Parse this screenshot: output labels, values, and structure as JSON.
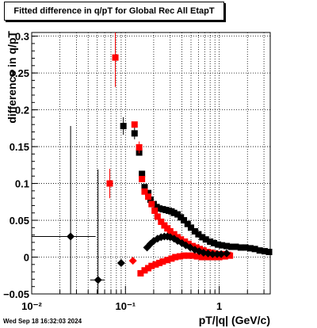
{
  "chart_data": {
    "type": "scatter",
    "title": "Fitted difference in q/pT for Global Rec All EtapT",
    "xlabel": "pT/|q| (GeV/c)",
    "ylabel": "difference in q/pT",
    "xscale": "log",
    "xlim": [
      0.01,
      3.5
    ],
    "ylim": [
      -0.05,
      0.305
    ],
    "grid": true,
    "x_tick_labels": [
      "10⁻²",
      "10⁻¹",
      "1"
    ],
    "y_tick_labels": [
      "−0.05",
      "0",
      "0.05",
      "0.1",
      "0.15",
      "0.2",
      "0.25",
      "0.3"
    ],
    "y_ticks": [
      -0.05,
      0,
      0.05,
      0.1,
      0.15,
      0.2,
      0.25,
      0.3
    ],
    "colors": {
      "black": "#000000",
      "red": "#ff0000",
      "frame": "#000000"
    },
    "series": [
      {
        "marker": "square",
        "color": "#000000",
        "points": [
          {
            "x": 0.095,
            "y": 0.178,
            "yerr": 0.012
          },
          {
            "x": 0.125,
            "y": 0.168,
            "yerr": 0.008
          },
          {
            "x": 0.14,
            "y": 0.142
          },
          {
            "x": 0.15,
            "y": 0.113
          },
          {
            "x": 0.16,
            "y": 0.095
          },
          {
            "x": 0.175,
            "y": 0.087
          },
          {
            "x": 0.185,
            "y": 0.078
          },
          {
            "x": 0.2,
            "y": 0.072
          },
          {
            "x": 0.215,
            "y": 0.068
          },
          {
            "x": 0.23,
            "y": 0.066
          },
          {
            "x": 0.25,
            "y": 0.065
          },
          {
            "x": 0.27,
            "y": 0.064
          },
          {
            "x": 0.29,
            "y": 0.063
          },
          {
            "x": 0.31,
            "y": 0.062
          },
          {
            "x": 0.33,
            "y": 0.06
          },
          {
            "x": 0.36,
            "y": 0.058
          },
          {
            "x": 0.39,
            "y": 0.054
          },
          {
            "x": 0.42,
            "y": 0.05
          },
          {
            "x": 0.46,
            "y": 0.045
          },
          {
            "x": 0.5,
            "y": 0.04
          },
          {
            "x": 0.55,
            "y": 0.035
          },
          {
            "x": 0.6,
            "y": 0.031
          },
          {
            "x": 0.66,
            "y": 0.027
          },
          {
            "x": 0.72,
            "y": 0.024
          },
          {
            "x": 0.8,
            "y": 0.021
          },
          {
            "x": 0.88,
            "y": 0.019
          },
          {
            "x": 0.97,
            "y": 0.017
          },
          {
            "x": 1.07,
            "y": 0.016
          },
          {
            "x": 1.2,
            "y": 0.015
          },
          {
            "x": 1.35,
            "y": 0.014
          },
          {
            "x": 1.5,
            "y": 0.014
          },
          {
            "x": 1.7,
            "y": 0.013
          },
          {
            "x": 1.9,
            "y": 0.013
          },
          {
            "x": 2.15,
            "y": 0.012
          },
          {
            "x": 2.4,
            "y": 0.011
          },
          {
            "x": 2.7,
            "y": 0.009
          },
          {
            "x": 3.05,
            "y": 0.008
          },
          {
            "x": 3.4,
            "y": 0.007
          }
        ]
      },
      {
        "marker": "square",
        "color": "#ff0000",
        "points": [
          {
            "x": 0.068,
            "y": 0.1,
            "yerr": 0.02
          },
          {
            "x": 0.078,
            "y": 0.271,
            "yerr": 0.04
          },
          {
            "x": 0.125,
            "y": 0.18
          },
          {
            "x": 0.14,
            "y": 0.149,
            "yerr": 0.008
          },
          {
            "x": 0.15,
            "y": 0.106
          },
          {
            "x": 0.16,
            "y": 0.089
          },
          {
            "x": 0.175,
            "y": 0.082
          },
          {
            "x": 0.19,
            "y": 0.072
          },
          {
            "x": 0.205,
            "y": 0.063
          },
          {
            "x": 0.22,
            "y": 0.055
          },
          {
            "x": 0.24,
            "y": 0.048
          },
          {
            "x": 0.26,
            "y": 0.043
          },
          {
            "x": 0.28,
            "y": 0.039
          },
          {
            "x": 0.3,
            "y": 0.035
          },
          {
            "x": 0.33,
            "y": 0.031
          },
          {
            "x": 0.36,
            "y": 0.027
          },
          {
            "x": 0.39,
            "y": 0.024
          },
          {
            "x": 0.43,
            "y": 0.021
          },
          {
            "x": 0.47,
            "y": 0.018
          },
          {
            "x": 0.52,
            "y": 0.015
          },
          {
            "x": 0.57,
            "y": 0.013
          },
          {
            "x": 0.62,
            "y": 0.011
          },
          {
            "x": 0.68,
            "y": 0.009
          },
          {
            "x": 0.75,
            "y": 0.007
          },
          {
            "x": 0.82,
            "y": 0.006
          },
          {
            "x": 0.9,
            "y": 0.005
          },
          {
            "x": 1.0,
            "y": 0.004
          },
          {
            "x": 1.1,
            "y": 0.004
          },
          {
            "x": 1.25,
            "y": 0.003
          },
          {
            "x": 0.145,
            "y": -0.022
          },
          {
            "x": 0.16,
            "y": -0.018
          },
          {
            "x": 0.175,
            "y": -0.015
          },
          {
            "x": 0.19,
            "y": -0.012
          },
          {
            "x": 0.21,
            "y": -0.01
          },
          {
            "x": 0.23,
            "y": -0.008
          },
          {
            "x": 0.25,
            "y": -0.006
          },
          {
            "x": 0.28,
            "y": -0.004
          },
          {
            "x": 0.31,
            "y": -0.002
          },
          {
            "x": 0.34,
            "y": 0.0
          },
          {
            "x": 0.38,
            "y": 0.001
          },
          {
            "x": 0.42,
            "y": 0.002
          },
          {
            "x": 0.47,
            "y": 0.002
          },
          {
            "x": 0.52,
            "y": 0.002
          },
          {
            "x": 0.58,
            "y": 0.001
          },
          {
            "x": 0.65,
            "y": 0.0
          },
          {
            "x": 0.72,
            "y": 0.0
          },
          {
            "x": 0.8,
            "y": 0.0
          },
          {
            "x": 0.9,
            "y": 0.0
          },
          {
            "x": 1.0,
            "y": 0.0
          },
          {
            "x": 1.15,
            "y": 0.001
          },
          {
            "x": 1.3,
            "y": 0.002
          }
        ]
      },
      {
        "marker": "diamond",
        "color": "#000000",
        "points": [
          {
            "x": 0.026,
            "y": 0.028,
            "xerr": [
              0.01,
              0.048
            ],
            "yerr": 0.15
          },
          {
            "x": 0.051,
            "y": -0.031,
            "xerr": [
              0.042,
              0.06
            ],
            "yerr": 0.15
          },
          {
            "x": 0.09,
            "y": -0.008
          },
          {
            "x": 0.17,
            "y": 0.013
          },
          {
            "x": 0.185,
            "y": 0.018
          },
          {
            "x": 0.2,
            "y": 0.022
          },
          {
            "x": 0.22,
            "y": 0.025
          },
          {
            "x": 0.24,
            "y": 0.027
          },
          {
            "x": 0.26,
            "y": 0.028
          },
          {
            "x": 0.28,
            "y": 0.028
          },
          {
            "x": 0.3,
            "y": 0.027
          },
          {
            "x": 0.33,
            "y": 0.025
          },
          {
            "x": 0.36,
            "y": 0.022
          },
          {
            "x": 0.4,
            "y": 0.019
          },
          {
            "x": 0.44,
            "y": 0.016
          },
          {
            "x": 0.49,
            "y": 0.013
          },
          {
            "x": 0.55,
            "y": 0.01
          },
          {
            "x": 0.61,
            "y": 0.008
          },
          {
            "x": 0.68,
            "y": 0.006
          },
          {
            "x": 0.76,
            "y": 0.005
          },
          {
            "x": 0.85,
            "y": 0.004
          },
          {
            "x": 0.95,
            "y": 0.004
          },
          {
            "x": 1.05,
            "y": 0.004
          },
          {
            "x": 1.2,
            "y": 0.005
          }
        ]
      },
      {
        "marker": "diamond",
        "color": "#ff0000",
        "points": [
          {
            "x": 0.12,
            "y": -0.005
          }
        ]
      }
    ]
  },
  "datestamp": "Wed Sep 18 16:32:03 2024"
}
